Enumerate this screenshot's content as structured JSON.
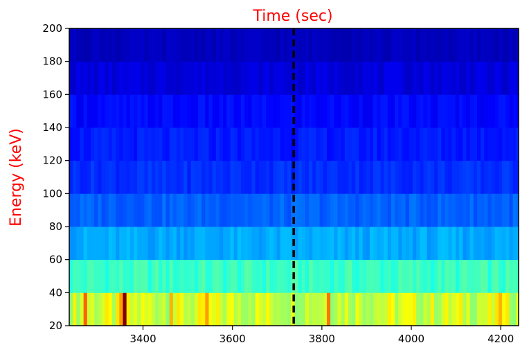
{
  "chart_data": {
    "type": "heatmap",
    "title": "Time (sec)",
    "title_color": "#ff0000",
    "xlabel": "",
    "ylabel": "Energy (keV)",
    "ylabel_color": "#ff0000",
    "colormap": "jet",
    "xlim": [
      3235,
      4240
    ],
    "ylim": [
      20,
      200
    ],
    "x_ticks": [
      3400,
      3600,
      3800,
      4000,
      4200
    ],
    "x_tick_labels": [
      "3400",
      "3600",
      "3800",
      "4000",
      "4200"
    ],
    "y_ticks": [
      20,
      40,
      60,
      80,
      100,
      120,
      140,
      160,
      180,
      200
    ],
    "y_tick_labels": [
      "20",
      "40",
      "60",
      "80",
      "100",
      "120",
      "140",
      "160",
      "180",
      "200"
    ],
    "energy_bins": [
      [
        20,
        40
      ],
      [
        40,
        60
      ],
      [
        60,
        80
      ],
      [
        80,
        100
      ],
      [
        100,
        120
      ],
      [
        120,
        140
      ],
      [
        140,
        160
      ],
      [
        160,
        180
      ],
      [
        180,
        200
      ]
    ],
    "time_bin_width_sec": 8,
    "band_base_intensity": [
      0.58,
      0.43,
      0.29,
      0.22,
      0.17,
      0.15,
      0.13,
      0.09,
      0.06
    ],
    "band_variation": [
      0.07,
      0.035,
      0.025,
      0.022,
      0.02,
      0.02,
      0.02,
      0.02,
      0.015
    ],
    "hot_spots": [
      {
        "time": 3362,
        "energy_bin": 0,
        "intensity": 1.0
      },
      {
        "time": 3267,
        "energy_bin": 0,
        "intensity": 0.78
      },
      {
        "time": 3350,
        "energy_bin": 0,
        "intensity": 0.72
      },
      {
        "time": 3465,
        "energy_bin": 0,
        "intensity": 0.7
      },
      {
        "time": 3545,
        "energy_bin": 0,
        "intensity": 0.72
      },
      {
        "time": 3815,
        "energy_bin": 0,
        "intensity": 0.76
      },
      {
        "time": 4200,
        "energy_bin": 0,
        "intensity": 0.7
      }
    ],
    "marker_line": {
      "x": 3737,
      "style": "dashed",
      "color": "#000000"
    },
    "grid": false
  }
}
